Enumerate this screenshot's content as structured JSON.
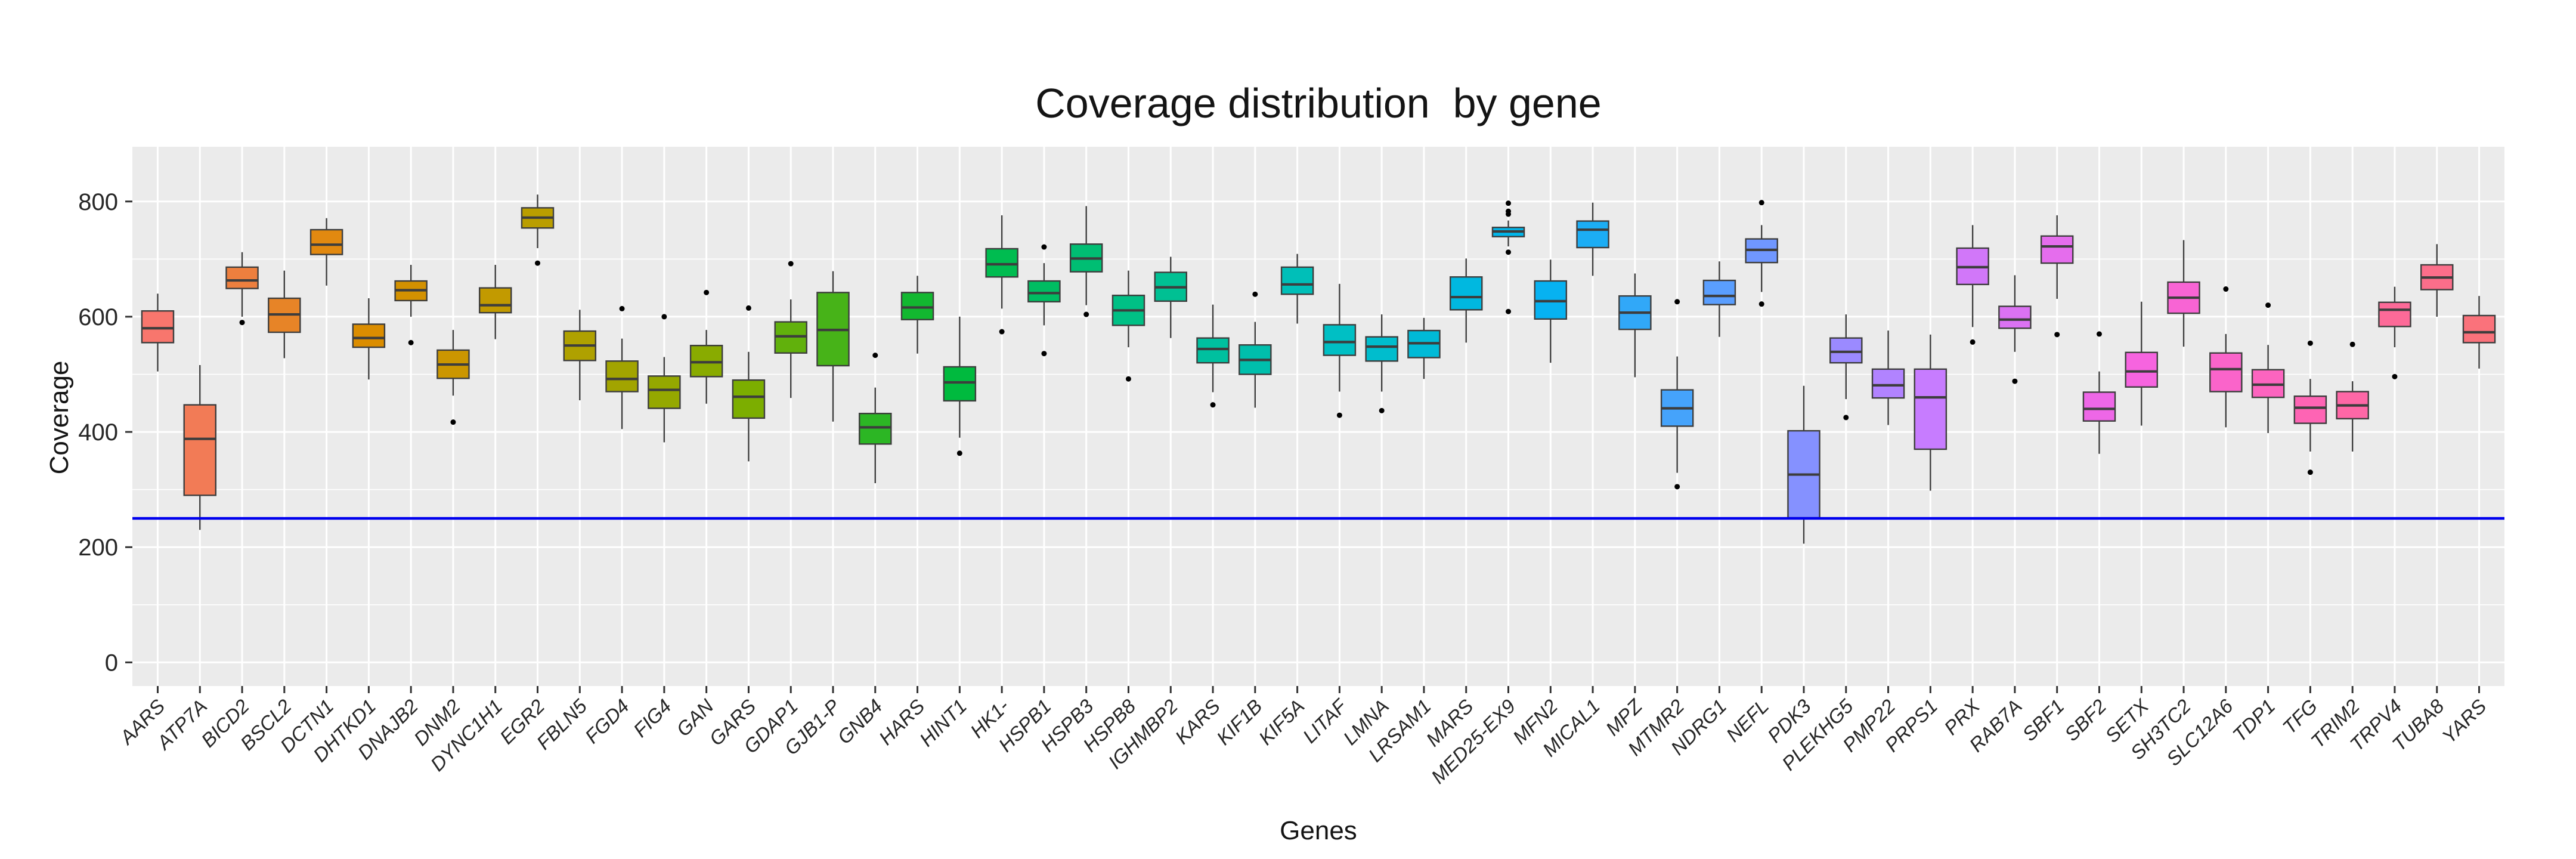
{
  "chart_data": {
    "type": "boxplot",
    "title": "Coverage distribution  by gene",
    "xlabel": "Genes",
    "ylabel": "Coverage",
    "yticks": [
      0,
      200,
      400,
      600,
      800
    ],
    "ylim": [
      -41,
      895
    ],
    "grid_on": true,
    "panel_background": "#EBEBEB",
    "grid_color": "#FFFFFF",
    "box_border_color": "#3D3D3D",
    "outlier_color": "#000000",
    "axis_text_color": "#262626",
    "threshold_line": {
      "y": 250,
      "color": "#0000EE"
    },
    "genes": [
      {
        "name": "AARS",
        "color": "#F8766D",
        "whislo": 505,
        "q1": 555,
        "med": 580,
        "q3": 610,
        "whishi": 640,
        "outliers": []
      },
      {
        "name": "ATP7A",
        "color": "#F27B56",
        "whislo": 230,
        "q1": 290,
        "med": 388,
        "q3": 447,
        "whishi": 516,
        "outliers": []
      },
      {
        "name": "BICD2",
        "color": "#ED7F3E",
        "whislo": 600,
        "q1": 649,
        "med": 663,
        "q3": 686,
        "whishi": 712,
        "outliers": [
          590
        ]
      },
      {
        "name": "BSCL2",
        "color": "#E78427",
        "whislo": 528,
        "q1": 573,
        "med": 604,
        "q3": 632,
        "whishi": 680,
        "outliers": []
      },
      {
        "name": "DCTN1",
        "color": "#E28910",
        "whislo": 654,
        "q1": 708,
        "med": 725,
        "q3": 751,
        "whishi": 771,
        "outliers": []
      },
      {
        "name": "DHTKD1",
        "color": "#DB8D00",
        "whislo": 491,
        "q1": 547,
        "med": 563,
        "q3": 587,
        "whishi": 632,
        "outliers": []
      },
      {
        "name": "DNAJB2",
        "color": "#D39100",
        "whislo": 600,
        "q1": 628,
        "med": 646,
        "q3": 662,
        "whishi": 690,
        "outliers": [
          555
        ]
      },
      {
        "name": "DNM2",
        "color": "#CB9600",
        "whislo": 463,
        "q1": 493,
        "med": 517,
        "q3": 542,
        "whishi": 577,
        "outliers": [
          417
        ]
      },
      {
        "name": "DYNC1H1",
        "color": "#C29A00",
        "whislo": 561,
        "q1": 607,
        "med": 620,
        "q3": 650,
        "whishi": 690,
        "outliers": []
      },
      {
        "name": "EGR2",
        "color": "#BA9E00",
        "whislo": 719,
        "q1": 754,
        "med": 772,
        "q3": 789,
        "whishi": 812,
        "outliers": [
          693
        ]
      },
      {
        "name": "FBLN5",
        "color": "#AFA100",
        "whislo": 455,
        "q1": 524,
        "med": 550,
        "q3": 575,
        "whishi": 612,
        "outliers": []
      },
      {
        "name": "FGD4",
        "color": "#A2A400",
        "whislo": 405,
        "q1": 470,
        "med": 492,
        "q3": 523,
        "whishi": 562,
        "outliers": [
          614
        ]
      },
      {
        "name": "FIG4",
        "color": "#95A800",
        "whislo": 382,
        "q1": 441,
        "med": 473,
        "q3": 497,
        "whishi": 530,
        "outliers": [
          600
        ]
      },
      {
        "name": "GAN",
        "color": "#89AB00",
        "whislo": 449,
        "q1": 496,
        "med": 521,
        "q3": 550,
        "whishi": 577,
        "outliers": [
          642
        ]
      },
      {
        "name": "GARS",
        "color": "#7CAE00",
        "whislo": 349,
        "q1": 424,
        "med": 461,
        "q3": 490,
        "whishi": 539,
        "outliers": [
          615
        ]
      },
      {
        "name": "GDAP1",
        "color": "#61B10C",
        "whislo": 459,
        "q1": 537,
        "med": 566,
        "q3": 591,
        "whishi": 630,
        "outliers": [
          692
        ]
      },
      {
        "name": "GJB1-P",
        "color": "#47B318",
        "whislo": 418,
        "q1": 515,
        "med": 577,
        "q3": 642,
        "whishi": 679,
        "outliers": []
      },
      {
        "name": "GNB4",
        "color": "#2CB624",
        "whislo": 311,
        "q1": 379,
        "med": 408,
        "q3": 432,
        "whishi": 477,
        "outliers": [
          533
        ]
      },
      {
        "name": "HARS",
        "color": "#12B830",
        "whislo": 536,
        "q1": 595,
        "med": 616,
        "q3": 642,
        "whishi": 671,
        "outliers": []
      },
      {
        "name": "HINT1",
        "color": "#00BA3E",
        "whislo": 390,
        "q1": 454,
        "med": 486,
        "q3": 513,
        "whishi": 600,
        "outliers": [
          363
        ]
      },
      {
        "name": "HK1-",
        "color": "#00BC50",
        "whislo": 614,
        "q1": 669,
        "med": 691,
        "q3": 718,
        "whishi": 776,
        "outliers": [
          574
        ]
      },
      {
        "name": "HSPB1",
        "color": "#00BD62",
        "whislo": 585,
        "q1": 626,
        "med": 641,
        "q3": 662,
        "whishi": 693,
        "outliers": [
          536,
          721
        ]
      },
      {
        "name": "HSPB3",
        "color": "#00BE73",
        "whislo": 620,
        "q1": 678,
        "med": 701,
        "q3": 726,
        "whishi": 792,
        "outliers": [
          604
        ]
      },
      {
        "name": "HSPB8",
        "color": "#00C085",
        "whislo": 547,
        "q1": 585,
        "med": 611,
        "q3": 637,
        "whishi": 680,
        "outliers": [
          492
        ]
      },
      {
        "name": "IGHMBP2",
        "color": "#00C093",
        "whislo": 563,
        "q1": 627,
        "med": 651,
        "q3": 677,
        "whishi": 704,
        "outliers": []
      },
      {
        "name": "KARS",
        "color": "#00C09F",
        "whislo": 469,
        "q1": 520,
        "med": 544,
        "q3": 563,
        "whishi": 621,
        "outliers": [
          447
        ]
      },
      {
        "name": "KIF1B",
        "color": "#00BFAC",
        "whislo": 442,
        "q1": 500,
        "med": 525,
        "q3": 551,
        "whishi": 591,
        "outliers": [
          639
        ]
      },
      {
        "name": "KIF5A",
        "color": "#00BFB8",
        "whislo": 588,
        "q1": 639,
        "med": 656,
        "q3": 686,
        "whishi": 709,
        "outliers": []
      },
      {
        "name": "LITAF",
        "color": "#00BFC4",
        "whislo": 470,
        "q1": 533,
        "med": 556,
        "q3": 586,
        "whishi": 657,
        "outliers": [
          429
        ]
      },
      {
        "name": "LMNA",
        "color": "#00BDCD",
        "whislo": 470,
        "q1": 523,
        "med": 548,
        "q3": 565,
        "whishi": 604,
        "outliers": [
          437
        ]
      },
      {
        "name": "LRSAM1",
        "color": "#00BAD7",
        "whislo": 492,
        "q1": 529,
        "med": 554,
        "q3": 576,
        "whishi": 598,
        "outliers": []
      },
      {
        "name": "MARS",
        "color": "#00B8E0",
        "whislo": 555,
        "q1": 612,
        "med": 634,
        "q3": 669,
        "whishi": 701,
        "outliers": []
      },
      {
        "name": "MED25-EX9",
        "color": "#00B6EA",
        "whislo": 722,
        "q1": 739,
        "med": 748,
        "q3": 755,
        "whishi": 767,
        "outliers": [
          609,
          712,
          778,
          783,
          797
        ]
      },
      {
        "name": "MFN2",
        "color": "#07B2F1",
        "whislo": 520,
        "q1": 596,
        "med": 627,
        "q3": 662,
        "whishi": 699,
        "outliers": []
      },
      {
        "name": "MICAL1",
        "color": "#1CADF4",
        "whislo": 671,
        "q1": 720,
        "med": 751,
        "q3": 766,
        "whishi": 798,
        "outliers": []
      },
      {
        "name": "MPZ",
        "color": "#31A8F8",
        "whislo": 495,
        "q1": 578,
        "med": 607,
        "q3": 636,
        "whishi": 675,
        "outliers": []
      },
      {
        "name": "MTMR2",
        "color": "#45A3FB",
        "whislo": 329,
        "q1": 410,
        "med": 441,
        "q3": 473,
        "whishi": 531,
        "outliers": [
          305,
          626
        ]
      },
      {
        "name": "NDRG1",
        "color": "#5A9EFE",
        "whislo": 565,
        "q1": 621,
        "med": 636,
        "q3": 663,
        "whishi": 696,
        "outliers": []
      },
      {
        "name": "NEFL",
        "color": "#7097FF",
        "whislo": 643,
        "q1": 694,
        "med": 716,
        "q3": 735,
        "whishi": 759,
        "outliers": [
          622,
          798
        ]
      },
      {
        "name": "PDK3",
        "color": "#8591FF",
        "whislo": 206,
        "q1": 251,
        "med": 326,
        "q3": 402,
        "whishi": 480,
        "outliers": []
      },
      {
        "name": "PLEKHG5",
        "color": "#9B8AFF",
        "whislo": 457,
        "q1": 520,
        "med": 539,
        "q3": 563,
        "whishi": 604,
        "outliers": [
          425
        ]
      },
      {
        "name": "PMP22",
        "color": "#B183FF",
        "whislo": 412,
        "q1": 459,
        "med": 481,
        "q3": 509,
        "whishi": 576,
        "outliers": []
      },
      {
        "name": "PRPS1",
        "color": "#C77CFF",
        "whislo": 298,
        "q1": 370,
        "med": 460,
        "q3": 509,
        "whishi": 569,
        "outliers": []
      },
      {
        "name": "PRX",
        "color": "#D177F9",
        "whislo": 582,
        "q1": 656,
        "med": 686,
        "q3": 719,
        "whishi": 759,
        "outliers": [
          556
        ]
      },
      {
        "name": "RAB7A",
        "color": "#DB72F3",
        "whislo": 539,
        "q1": 580,
        "med": 595,
        "q3": 618,
        "whishi": 672,
        "outliers": [
          488
        ]
      },
      {
        "name": "SBF1",
        "color": "#E56DED",
        "whislo": 631,
        "q1": 693,
        "med": 722,
        "q3": 740,
        "whishi": 776,
        "outliers": [
          569
        ]
      },
      {
        "name": "SBF2",
        "color": "#EE67E7",
        "whislo": 362,
        "q1": 419,
        "med": 440,
        "q3": 469,
        "whishi": 505,
        "outliers": [
          570
        ]
      },
      {
        "name": "SETX",
        "color": "#F664DF",
        "whislo": 411,
        "q1": 478,
        "med": 505,
        "q3": 538,
        "whishi": 626,
        "outliers": []
      },
      {
        "name": "SH3TC2",
        "color": "#F864D4",
        "whislo": 548,
        "q1": 606,
        "med": 633,
        "q3": 660,
        "whishi": 733,
        "outliers": []
      },
      {
        "name": "SLC12A6",
        "color": "#FA64CA",
        "whislo": 408,
        "q1": 470,
        "med": 509,
        "q3": 537,
        "whishi": 570,
        "outliers": [
          648
        ]
      },
      {
        "name": "TDP1",
        "color": "#FC64BF",
        "whislo": 398,
        "q1": 460,
        "med": 482,
        "q3": 508,
        "whishi": 551,
        "outliers": [
          620
        ]
      },
      {
        "name": "TFG",
        "color": "#FE64B4",
        "whislo": 366,
        "q1": 415,
        "med": 442,
        "q3": 462,
        "whishi": 492,
        "outliers": [
          330,
          554
        ]
      },
      {
        "name": "TRIM2",
        "color": "#FE67A6",
        "whislo": 366,
        "q1": 423,
        "med": 446,
        "q3": 470,
        "whishi": 488,
        "outliers": [
          552
        ]
      },
      {
        "name": "TRPV4",
        "color": "#FD6A98",
        "whislo": 547,
        "q1": 583,
        "med": 612,
        "q3": 625,
        "whishi": 652,
        "outliers": [
          496
        ]
      },
      {
        "name": "TUBA8",
        "color": "#FB6E8A",
        "whislo": 600,
        "q1": 647,
        "med": 668,
        "q3": 690,
        "whishi": 726,
        "outliers": []
      },
      {
        "name": "YARS",
        "color": "#FA727B",
        "whislo": 510,
        "q1": 555,
        "med": 573,
        "q3": 602,
        "whishi": 636,
        "outliers": []
      }
    ]
  }
}
